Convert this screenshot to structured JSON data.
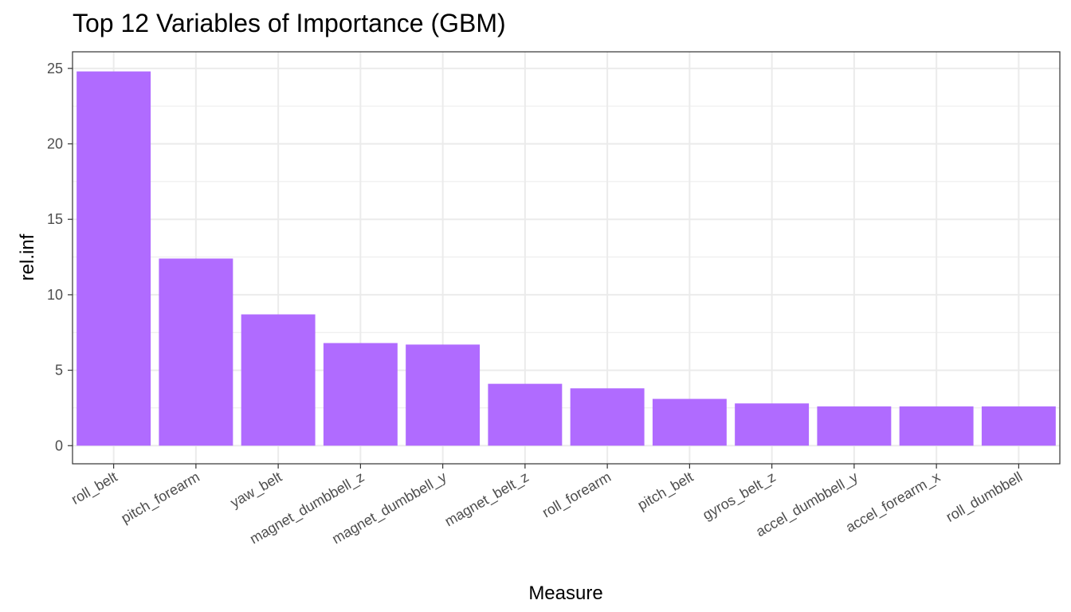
{
  "chart_data": {
    "type": "bar",
    "title": "Top 12 Variables of Importance (GBM)",
    "xlabel": "Measure",
    "ylabel": "rel.inf",
    "categories": [
      "roll_belt",
      "pitch_forearm",
      "yaw_belt",
      "magnet_dumbbell_z",
      "magnet_dumbbell_y",
      "magnet_belt_z",
      "roll_forearm",
      "pitch_belt",
      "gyros_belt_z",
      "accel_dumbbell_y",
      "accel_forearm_x",
      "roll_dumbbell"
    ],
    "values": [
      24.8,
      12.4,
      8.7,
      6.8,
      6.7,
      4.1,
      3.8,
      3.1,
      2.8,
      2.6,
      2.6,
      2.6
    ],
    "ylim": [
      -1.2,
      26.1
    ],
    "yticks": [
      0,
      5,
      10,
      15,
      20,
      25
    ],
    "ytick_labels": [
      "0",
      "5",
      "10",
      "15",
      "20",
      "25"
    ],
    "grid": true,
    "bar_color": "#b06bff",
    "legend": "none"
  }
}
